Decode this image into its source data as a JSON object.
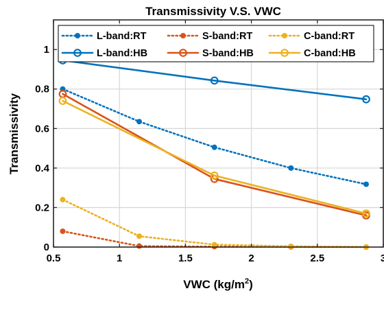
{
  "chart_data": {
    "type": "line",
    "title": "Transmissivity V.S. VWC",
    "xlabel": "VWC (kg/m",
    "xlabel_sup": "2",
    "xlabel_end": ")",
    "ylabel": "Transmissivity",
    "xlim": [
      0.5,
      3.0
    ],
    "ylim": [
      0,
      1.15
    ],
    "xticks": [
      0.5,
      1,
      1.5,
      2,
      2.5,
      3
    ],
    "xtick_labels": [
      "0.5",
      "1",
      "1.5",
      "2",
      "2.5",
      "3"
    ],
    "yticks": [
      0,
      0.2,
      0.4,
      0.6,
      0.8,
      1
    ],
    "ytick_labels": [
      "0",
      "0.2",
      "0.4",
      "0.6",
      "0.8",
      "1"
    ],
    "grid": true,
    "legend_placement": "top",
    "series": [
      {
        "name": "L-band:RT",
        "color": "#0072BD",
        "style": "dotted",
        "marker": "dot",
        "x": [
          0.57,
          1.15,
          1.72,
          2.3,
          2.87
        ],
        "y": [
          0.8,
          0.635,
          0.505,
          0.4,
          0.318
        ]
      },
      {
        "name": "S-band:RT",
        "color": "#D95319",
        "style": "dotted",
        "marker": "dot",
        "x": [
          0.57,
          1.15,
          1.72,
          2.3,
          2.87
        ],
        "y": [
          0.08,
          0.005,
          0.002,
          0.001,
          0.0
        ]
      },
      {
        "name": "C-band:RT",
        "color": "#EDB120",
        "style": "dotted",
        "marker": "dot",
        "x": [
          0.57,
          1.15,
          1.72,
          2.3,
          2.87
        ],
        "y": [
          0.24,
          0.055,
          0.012,
          0.004,
          0.001
        ]
      },
      {
        "name": "L-band:HB",
        "color": "#0072BD",
        "style": "solid",
        "marker": "circle",
        "x": [
          0.57,
          1.72,
          2.87
        ],
        "y": [
          0.945,
          0.843,
          0.748
        ]
      },
      {
        "name": "S-band:HB",
        "color": "#D95319",
        "style": "solid",
        "marker": "circle",
        "x": [
          0.57,
          1.72,
          2.87
        ],
        "y": [
          0.775,
          0.345,
          0.16
        ]
      },
      {
        "name": "C-band:HB",
        "color": "#EDB120",
        "style": "solid",
        "marker": "circle",
        "x": [
          0.57,
          1.72,
          2.87
        ],
        "y": [
          0.74,
          0.362,
          0.17
        ]
      }
    ]
  }
}
